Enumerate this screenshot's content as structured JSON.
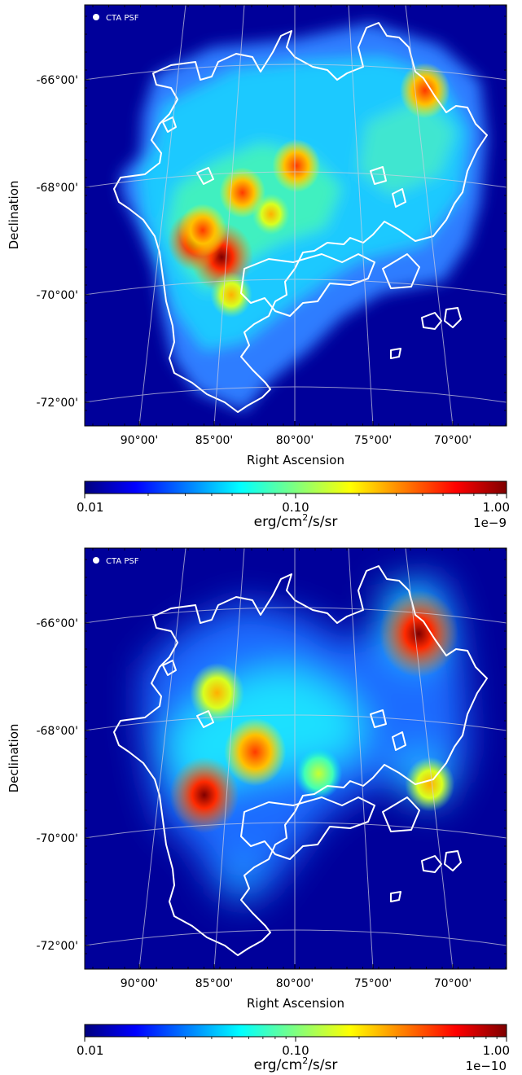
{
  "chart_data": [
    {
      "type": "heatmap",
      "panel": "top",
      "legend_label": "CTA PSF",
      "xlabel": "Right Ascension",
      "ylabel": "Declination",
      "xticks": [
        "90°00'",
        "85°00'",
        "80°00'",
        "75°00'",
        "70°00'"
      ],
      "yticks": [
        "-66°00'",
        "-68°00'",
        "-70°00'",
        "-72°00'"
      ],
      "grid": true,
      "colormap": "jet",
      "colorbar": {
        "scale": "log",
        "ticks": [
          "0.01",
          "0.10",
          "1.00"
        ],
        "min": 0.01,
        "max": 1.0,
        "multiplier": "1e−9",
        "unit_base": "erg/cm",
        "unit_sup": "2",
        "unit_rest": "/s/sr"
      },
      "hotspots": [
        {
          "ra": 84.6,
          "dec": -69.3,
          "level": 0.95
        },
        {
          "ra": 86.3,
          "dec": -69.0,
          "level": 0.75
        },
        {
          "ra": 85.8,
          "dec": -68.8,
          "level": 0.6
        },
        {
          "ra": 83.3,
          "dec": -68.1,
          "level": 0.55
        },
        {
          "ra": 79.9,
          "dec": -67.6,
          "level": 0.6
        },
        {
          "ra": 71.8,
          "dec": -66.2,
          "level": 0.65
        },
        {
          "ra": 84.0,
          "dec": -70.0,
          "level": 0.45
        },
        {
          "ra": 81.5,
          "dec": -68.5,
          "level": 0.35
        }
      ]
    },
    {
      "type": "heatmap",
      "panel": "bottom",
      "legend_label": "CTA PSF",
      "xlabel": "Right Ascension",
      "ylabel": "Declination",
      "xticks": [
        "90°00'",
        "85°00'",
        "80°00'",
        "75°00'",
        "70°00'"
      ],
      "yticks": [
        "-66°00'",
        "-68°00'",
        "-70°00'",
        "-72°00'"
      ],
      "grid": true,
      "colormap": "jet",
      "colorbar": {
        "scale": "log",
        "ticks": [
          "0.01",
          "0.10",
          "1.00"
        ],
        "min": 0.01,
        "max": 1.0,
        "multiplier": "1e−10",
        "unit_base": "erg/cm",
        "unit_sup": "2",
        "unit_rest": "/s/sr"
      },
      "hotspots": [
        {
          "ra": 85.7,
          "dec": -69.2,
          "level": 0.75
        },
        {
          "ra": 72.2,
          "dec": -66.2,
          "level": 0.95
        },
        {
          "ra": 82.5,
          "dec": -68.4,
          "level": 0.6
        },
        {
          "ra": 84.9,
          "dec": -67.3,
          "level": 0.45
        },
        {
          "ra": 71.5,
          "dec": -69.0,
          "level": 0.35
        },
        {
          "ra": 78.5,
          "dec": -68.8,
          "level": 0.3
        }
      ]
    }
  ]
}
